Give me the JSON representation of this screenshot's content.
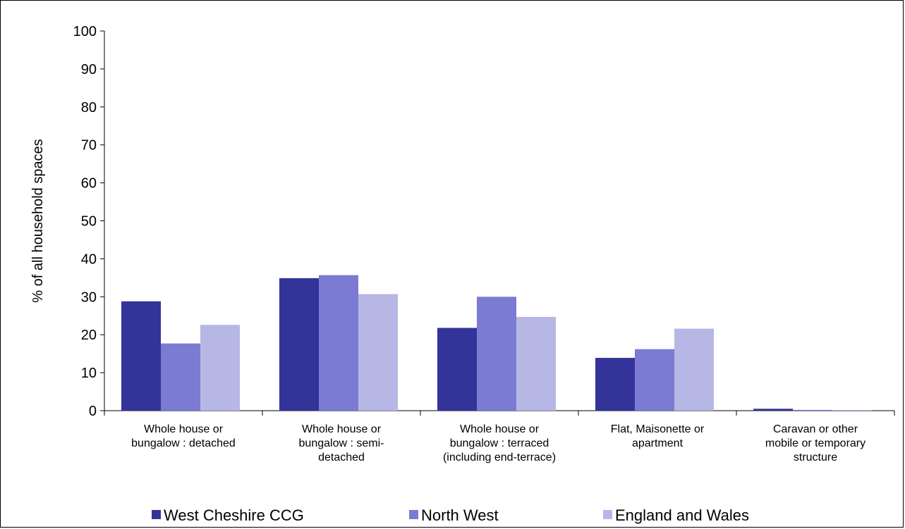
{
  "chart_data": {
    "type": "bar",
    "title": "",
    "xlabel": "",
    "ylabel": "% of all household spaces",
    "ylim": [
      0,
      100
    ],
    "yticks": [
      0,
      10,
      20,
      30,
      40,
      50,
      60,
      70,
      80,
      90,
      100
    ],
    "grid": false,
    "legend_position": "bottom",
    "categories": [
      [
        "Whole house or",
        "bungalow : detached"
      ],
      [
        "Whole house or",
        "bungalow : semi-",
        "detached"
      ],
      [
        "Whole house or",
        "bungalow : terraced",
        "(including end-terrace)"
      ],
      [
        "Flat, Maisonette or",
        "apartment"
      ],
      [
        "Caravan or other",
        "mobile or temporary",
        "structure"
      ]
    ],
    "series": [
      {
        "name": "West Cheshire CCG",
        "color": "#333399",
        "values": [
          28.8,
          34.9,
          21.8,
          13.9,
          0.5
        ]
      },
      {
        "name": "North West",
        "color": "#7b7bd4",
        "values": [
          17.7,
          35.7,
          30.0,
          16.2,
          0.2
        ]
      },
      {
        "name": "England and Wales",
        "color": "#b7b7e6",
        "values": [
          22.6,
          30.7,
          24.7,
          21.6,
          0.2
        ]
      }
    ]
  }
}
